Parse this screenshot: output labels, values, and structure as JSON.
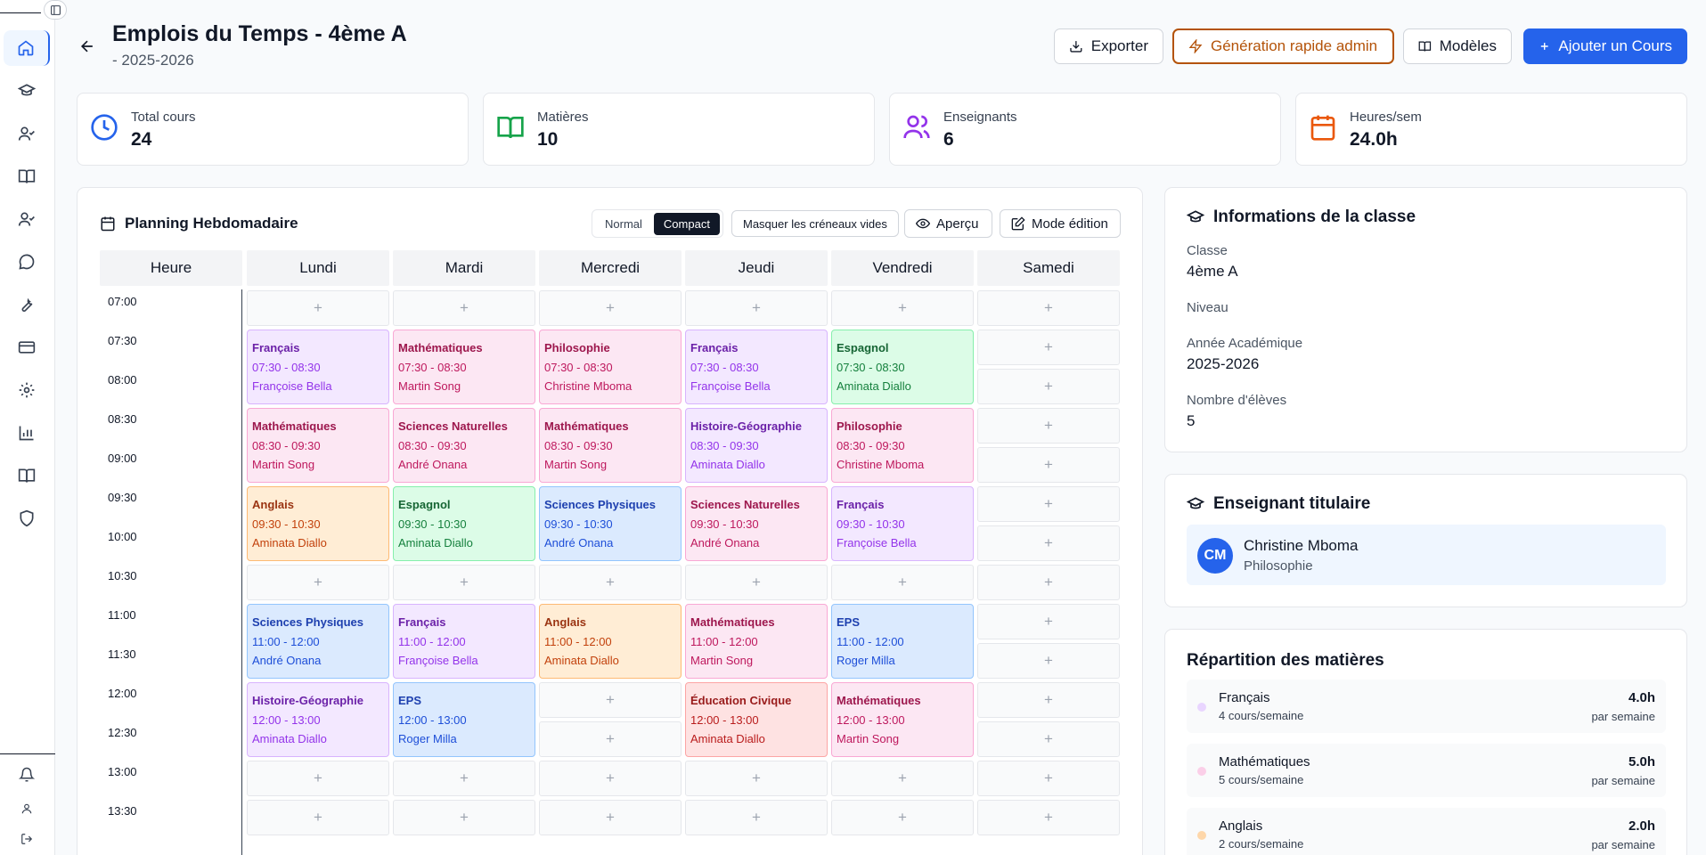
{
  "header": {
    "title": "Emplois du Temps - 4ème A",
    "subtitle": "- 2025-2026",
    "buttons": {
      "export": "Exporter",
      "quick_gen": "Génération rapide admin",
      "templates": "Modèles",
      "add_course": "Ajouter un Cours"
    }
  },
  "stats": [
    {
      "label": "Total cours",
      "value": "24",
      "icon": "clock-icon",
      "color": "#2563eb"
    },
    {
      "label": "Matières",
      "value": "10",
      "icon": "book-open-icon",
      "color": "#16a34a"
    },
    {
      "label": "Enseignants",
      "value": "6",
      "icon": "users-icon",
      "color": "#9333ea"
    },
    {
      "label": "Heures/sem",
      "value": "24.0h",
      "icon": "calendar-icon",
      "color": "#ea580c"
    }
  ],
  "planning": {
    "title": "Planning Hebdomadaire",
    "view_normal": "Normal",
    "view_compact": "Compact",
    "hide_empty": "Masquer les créneaux vides",
    "preview": "Aperçu",
    "edit_mode": "Mode édition",
    "hour_header": "Heure",
    "days": [
      "Lundi",
      "Mardi",
      "Mercredi",
      "Jeudi",
      "Vendredi",
      "Samedi"
    ],
    "times": [
      "07:00",
      "07:30",
      "08:00",
      "08:30",
      "09:00",
      "09:30",
      "10:00",
      "10:30",
      "11:00",
      "11:30",
      "12:00",
      "12:30",
      "13:00",
      "13:30"
    ],
    "add_symbol": "+",
    "courses": [
      {
        "day": 0,
        "start": 1,
        "span": 2,
        "subject": "Français",
        "time": "07:30 - 08:30",
        "teacher": "Françoise Bella",
        "theme": "purple"
      },
      {
        "day": 1,
        "start": 1,
        "span": 2,
        "subject": "Mathématiques",
        "time": "07:30 - 08:30",
        "teacher": "Martin Song",
        "theme": "pink"
      },
      {
        "day": 2,
        "start": 1,
        "span": 2,
        "subject": "Philosophie",
        "time": "07:30 - 08:30",
        "teacher": "Christine Mboma",
        "theme": "pink"
      },
      {
        "day": 3,
        "start": 1,
        "span": 2,
        "subject": "Français",
        "time": "07:30 - 08:30",
        "teacher": "Françoise Bella",
        "theme": "purple"
      },
      {
        "day": 4,
        "start": 1,
        "span": 2,
        "subject": "Espagnol",
        "time": "07:30 - 08:30",
        "teacher": "Aminata Diallo",
        "theme": "green"
      },
      {
        "day": 0,
        "start": 3,
        "span": 2,
        "subject": "Mathématiques",
        "time": "08:30 - 09:30",
        "teacher": "Martin Song",
        "theme": "pink"
      },
      {
        "day": 1,
        "start": 3,
        "span": 2,
        "subject": "Sciences Naturelles",
        "time": "08:30 - 09:30",
        "teacher": "André Onana",
        "theme": "pink"
      },
      {
        "day": 2,
        "start": 3,
        "span": 2,
        "subject": "Mathématiques",
        "time": "08:30 - 09:30",
        "teacher": "Martin Song",
        "theme": "pink"
      },
      {
        "day": 3,
        "start": 3,
        "span": 2,
        "subject": "Histoire-Géographie",
        "time": "08:30 - 09:30",
        "teacher": "Aminata Diallo",
        "theme": "purple"
      },
      {
        "day": 4,
        "start": 3,
        "span": 2,
        "subject": "Philosophie",
        "time": "08:30 - 09:30",
        "teacher": "Christine Mboma",
        "theme": "pink"
      },
      {
        "day": 0,
        "start": 5,
        "span": 2,
        "subject": "Anglais",
        "time": "09:30 - 10:30",
        "teacher": "Aminata Diallo",
        "theme": "orange"
      },
      {
        "day": 1,
        "start": 5,
        "span": 2,
        "subject": "Espagnol",
        "time": "09:30 - 10:30",
        "teacher": "Aminata Diallo",
        "theme": "green"
      },
      {
        "day": 2,
        "start": 5,
        "span": 2,
        "subject": "Sciences Physiques",
        "time": "09:30 - 10:30",
        "teacher": "André Onana",
        "theme": "blue"
      },
      {
        "day": 3,
        "start": 5,
        "span": 2,
        "subject": "Sciences Naturelles",
        "time": "09:30 - 10:30",
        "teacher": "André Onana",
        "theme": "pink"
      },
      {
        "day": 4,
        "start": 5,
        "span": 2,
        "subject": "Français",
        "time": "09:30 - 10:30",
        "teacher": "Françoise Bella",
        "theme": "purple"
      },
      {
        "day": 0,
        "start": 8,
        "span": 2,
        "subject": "Sciences Physiques",
        "time": "11:00 - 12:00",
        "teacher": "André Onana",
        "theme": "blue"
      },
      {
        "day": 1,
        "start": 8,
        "span": 2,
        "subject": "Français",
        "time": "11:00 - 12:00",
        "teacher": "Françoise Bella",
        "theme": "purple"
      },
      {
        "day": 2,
        "start": 8,
        "span": 2,
        "subject": "Anglais",
        "time": "11:00 - 12:00",
        "teacher": "Aminata Diallo",
        "theme": "orange"
      },
      {
        "day": 3,
        "start": 8,
        "span": 2,
        "subject": "Mathématiques",
        "time": "11:00 - 12:00",
        "teacher": "Martin Song",
        "theme": "pink"
      },
      {
        "day": 4,
        "start": 8,
        "span": 2,
        "subject": "EPS",
        "time": "11:00 - 12:00",
        "teacher": "Roger Milla",
        "theme": "blue"
      },
      {
        "day": 0,
        "start": 10,
        "span": 2,
        "subject": "Histoire-Géographie",
        "time": "12:00 - 13:00",
        "teacher": "Aminata Diallo",
        "theme": "purple"
      },
      {
        "day": 1,
        "start": 10,
        "span": 2,
        "subject": "EPS",
        "time": "12:00 - 13:00",
        "teacher": "Roger Milla",
        "theme": "blue"
      },
      {
        "day": 3,
        "start": 10,
        "span": 2,
        "subject": "Éducation Civique",
        "time": "12:00 - 13:00",
        "teacher": "Aminata Diallo",
        "theme": "red"
      },
      {
        "day": 4,
        "start": 10,
        "span": 2,
        "subject": "Mathématiques",
        "time": "12:00 - 13:00",
        "teacher": "Martin Song",
        "theme": "pink"
      }
    ],
    "themes": {
      "purple": {
        "bg": "#f3e8ff",
        "border": "#d8b4fe",
        "title": "#6b21a8",
        "text": "#9333ea"
      },
      "pink": {
        "bg": "#fce7f3",
        "border": "#f9a8d4",
        "title": "#9d174d",
        "text": "#be185d"
      },
      "green": {
        "bg": "#dcfce7",
        "border": "#86efac",
        "title": "#166534",
        "text": "#15803d"
      },
      "orange": {
        "bg": "#ffedd5",
        "border": "#fdba74",
        "title": "#9a3412",
        "text": "#c2410c"
      },
      "blue": {
        "bg": "#dbeafe",
        "border": "#93c5fd",
        "title": "#1e40af",
        "text": "#1d4ed8"
      },
      "red": {
        "bg": "#fee2e2",
        "border": "#fca5a5",
        "title": "#991b1b",
        "text": "#b91c1c"
      }
    }
  },
  "class_info": {
    "title": "Informations de la classe",
    "class_label": "Classe",
    "class_value": "4ème A",
    "level_label": "Niveau",
    "year_label": "Année Académique",
    "year_value": "2025-2026",
    "students_label": "Nombre d'élèves",
    "students_value": "5"
  },
  "main_teacher": {
    "title": "Enseignant titulaire",
    "initials": "CM",
    "name": "Christine Mboma",
    "subject": "Philosophie"
  },
  "distribution": {
    "title": "Répartition des matières",
    "items": [
      {
        "name": "Français",
        "count": "4 cours/semaine",
        "hours": "4.0h",
        "per": "par semaine",
        "color": "#e9d5ff"
      },
      {
        "name": "Mathématiques",
        "count": "5 cours/semaine",
        "hours": "5.0h",
        "per": "par semaine",
        "color": "#fbcfe8"
      },
      {
        "name": "Anglais",
        "count": "2 cours/semaine",
        "hours": "2.0h",
        "per": "par semaine",
        "color": "#fed7aa"
      }
    ]
  }
}
